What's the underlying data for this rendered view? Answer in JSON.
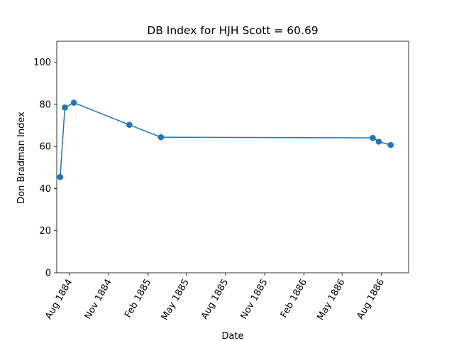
{
  "chart_data": {
    "type": "line",
    "title": "DB Index for HJH Scott = 60.69",
    "xlabel": "Date",
    "ylabel": "Don Bradman Index",
    "xlim": [
      "1884-07-02",
      "1886-10-04"
    ],
    "ylim": [
      0,
      110
    ],
    "yticks": [
      0,
      20,
      40,
      60,
      80,
      100
    ],
    "xticks": [
      {
        "date": "1884-08-01",
        "label": "Aug 1884"
      },
      {
        "date": "1884-11-01",
        "label": "Nov 1884"
      },
      {
        "date": "1885-02-01",
        "label": "Feb 1885"
      },
      {
        "date": "1885-05-01",
        "label": "May 1885"
      },
      {
        "date": "1885-08-01",
        "label": "Aug 1885"
      },
      {
        "date": "1885-11-01",
        "label": "Nov 1885"
      },
      {
        "date": "1886-02-01",
        "label": "Feb 1886"
      },
      {
        "date": "1886-05-01",
        "label": "May 1886"
      },
      {
        "date": "1886-08-01",
        "label": "Aug 1886"
      }
    ],
    "grid": false,
    "series": [
      {
        "color": "#1f77b4",
        "marker": "circle",
        "points": [
          {
            "x": "1884-07-10",
            "y": 45.5
          },
          {
            "x": "1884-07-21",
            "y": 78.5
          },
          {
            "x": "1884-08-11",
            "y": 80.8
          },
          {
            "x": "1884-12-19",
            "y": 70.3
          },
          {
            "x": "1885-03-03",
            "y": 64.4
          },
          {
            "x": "1886-07-12",
            "y": 64.1
          },
          {
            "x": "1886-07-26",
            "y": 62.3
          },
          {
            "x": "1886-08-23",
            "y": 60.69
          }
        ]
      }
    ]
  }
}
